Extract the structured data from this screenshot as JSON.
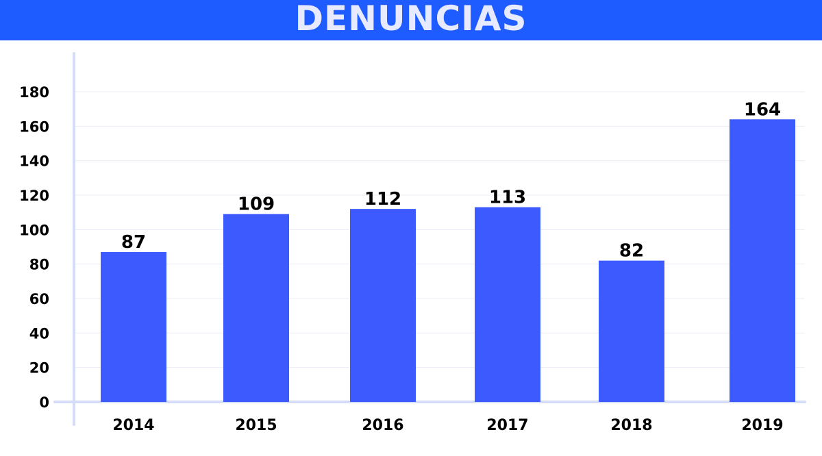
{
  "title": "DENUNCIAS",
  "colors": {
    "header_background": "#1f5cff",
    "header_text": "#e8ebff",
    "bar": "#3d5afe",
    "axis": "#d5dcf8",
    "gridline": "#ececf6"
  },
  "chart_data": {
    "type": "bar",
    "categories": [
      "2014",
      "2015",
      "2016",
      "2017",
      "2018",
      "2019"
    ],
    "values": [
      87,
      109,
      112,
      113,
      82,
      164
    ],
    "title": "DENUNCIAS",
    "xlabel": "",
    "ylabel": "",
    "ylim": [
      0,
      180
    ],
    "yticks": [
      0,
      20,
      40,
      60,
      80,
      100,
      120,
      140,
      160,
      180
    ],
    "grid": true,
    "data_labels": true,
    "legend": "none"
  }
}
